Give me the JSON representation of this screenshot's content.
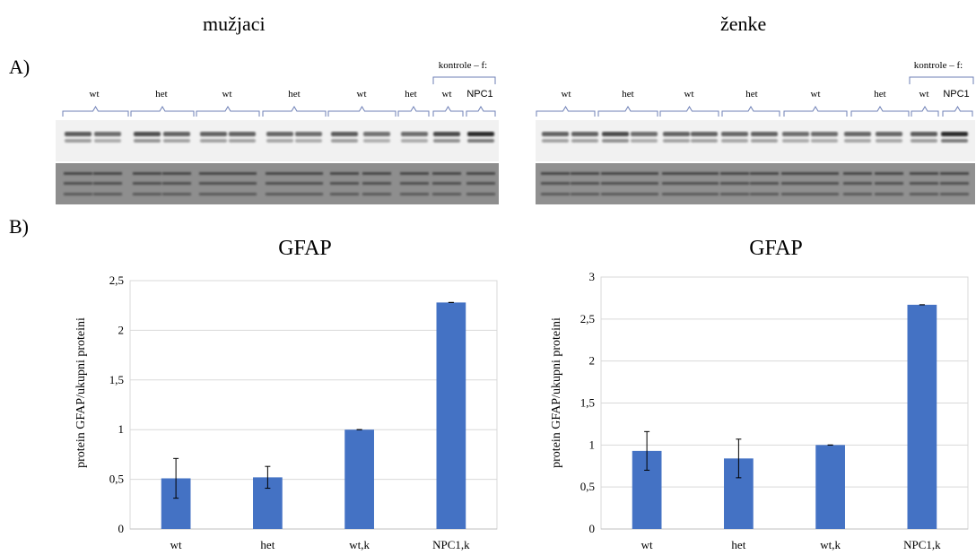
{
  "titles": {
    "male": "mužjaci",
    "female": "ženke"
  },
  "panel_labels": {
    "a": "A)",
    "b": "B)"
  },
  "blots": {
    "male": {
      "groups": [
        "wt",
        "het",
        "wt",
        "het",
        "wt",
        "het",
        "wt",
        "NPC1"
      ],
      "controls_label": "kontrole – f:"
    },
    "female": {
      "groups": [
        "wt",
        "het",
        "wt",
        "het",
        "wt",
        "het",
        "wt",
        "NPC1"
      ],
      "controls_label": "kontrole – f:"
    }
  },
  "chart_data": [
    {
      "type": "bar",
      "title": "GFAP",
      "ylabel": "protein GFAP/ukupni proteini",
      "xlabel": "",
      "categories": [
        "wt",
        "het",
        "wt,k",
        "NPC1,k"
      ],
      "values": [
        0.51,
        0.52,
        1.0,
        2.28
      ],
      "errors": [
        0.2,
        0.11,
        0.0,
        0.0
      ],
      "ylim": [
        0,
        2.5
      ],
      "yticks": [
        0,
        0.5,
        1,
        1.5,
        2,
        2.5
      ],
      "ytick_labels": [
        "0",
        "0,5",
        "1",
        "1,5",
        "2",
        "2,5"
      ],
      "grid": true,
      "color": "#4472C4"
    },
    {
      "type": "bar",
      "title": "GFAP",
      "ylabel": "protein GFAP/ukupni proteini",
      "xlabel": "",
      "categories": [
        "wt",
        "het",
        "wt,k",
        "NPC1,k"
      ],
      "values": [
        0.93,
        0.84,
        1.0,
        2.67
      ],
      "errors": [
        0.23,
        0.23,
        0.0,
        0.0
      ],
      "ylim": [
        0,
        3
      ],
      "yticks": [
        0,
        0.5,
        1,
        1.5,
        2,
        2.5,
        3
      ],
      "ytick_labels": [
        "0",
        "0,5",
        "1",
        "1,5",
        "2",
        "2,5",
        "3"
      ],
      "grid": true,
      "color": "#4472C4"
    }
  ]
}
